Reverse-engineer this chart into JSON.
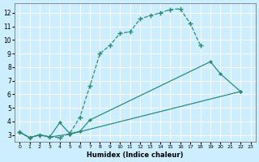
{
  "xlabel": "Humidex (Indice chaleur)",
  "bg_color": "#cceeff",
  "grid_color": "#ffffff",
  "line_color": "#2d8b78",
  "xlim": [
    -0.5,
    23.5
  ],
  "ylim": [
    2.5,
    12.7
  ],
  "xticks": [
    0,
    1,
    2,
    3,
    4,
    5,
    6,
    7,
    8,
    9,
    10,
    11,
    12,
    13,
    14,
    15,
    16,
    17,
    18,
    19,
    20,
    21,
    22,
    23
  ],
  "yticks": [
    3,
    4,
    5,
    6,
    7,
    8,
    9,
    10,
    11,
    12
  ],
  "curve1_x": [
    0,
    1,
    2,
    3,
    4,
    5,
    6,
    7,
    8,
    9,
    10,
    11,
    12,
    13,
    14,
    15,
    16,
    17,
    18
  ],
  "curve1_y": [
    3.2,
    2.8,
    3.0,
    2.85,
    2.8,
    3.1,
    4.3,
    6.6,
    9.0,
    9.6,
    10.5,
    10.6,
    11.55,
    11.8,
    12.0,
    12.25,
    12.3,
    11.2,
    9.6
  ],
  "curve2_x": [
    0,
    1,
    2,
    3,
    4,
    5,
    6,
    7,
    19,
    20,
    22
  ],
  "curve2_y": [
    3.2,
    2.8,
    3.0,
    2.85,
    3.9,
    3.1,
    3.25,
    4.1,
    8.4,
    7.5,
    6.2
  ],
  "curve3_x": [
    0,
    1,
    2,
    3,
    5,
    22
  ],
  "curve3_y": [
    3.2,
    2.8,
    3.0,
    2.85,
    3.05,
    6.2
  ]
}
